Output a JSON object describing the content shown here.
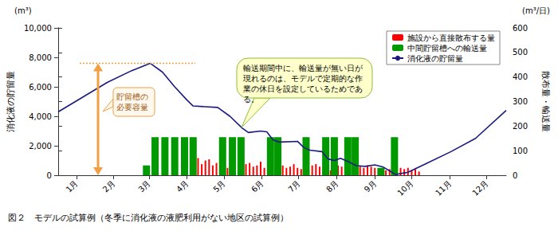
{
  "chart_data": {
    "type": "bar",
    "title": "図２　モデルの試算例（冬季に消化液の液肥利用がない地区の試算例）",
    "ylabel": "消化液の貯留量",
    "y_unit": "(m³)",
    "y2label": "散布量・輸送量",
    "y2_unit": "(m³/日)",
    "xlim": [
      0,
      365
    ],
    "xticks": [
      {
        "value": 15,
        "label": "1月"
      },
      {
        "value": 45,
        "label": "2月"
      },
      {
        "value": 74,
        "label": "3月"
      },
      {
        "value": 105,
        "label": "4月"
      },
      {
        "value": 135,
        "label": "5月"
      },
      {
        "value": 166,
        "label": "6月"
      },
      {
        "value": 196,
        "label": "7月"
      },
      {
        "value": 227,
        "label": "8月"
      },
      {
        "value": 258,
        "label": "9月"
      },
      {
        "value": 288,
        "label": "10月"
      },
      {
        "value": 319,
        "label": "11月"
      },
      {
        "value": 349,
        "label": "12月"
      }
    ],
    "ylim": [
      0,
      10000
    ],
    "yticks": [
      0,
      {
        "value": 2000,
        "label": "2,000"
      },
      {
        "value": 4000,
        "label": "4,000"
      },
      {
        "value": 6000,
        "label": "6,000"
      },
      {
        "value": 8000,
        "label": "8,000"
      },
      {
        "value": 10000,
        "label": "10,000"
      }
    ],
    "y2lim": [
      0,
      600
    ],
    "y2ticks": [
      0,
      100,
      200,
      300,
      400,
      500,
      600
    ],
    "grid": false,
    "legend": "upper right",
    "series": [
      {
        "name": "施設から直接散布する量",
        "type": "bar",
        "axis": "y2",
        "color": "#ff0000",
        "x": [
          111,
          114,
          117,
          120,
          123,
          126,
          129,
          132,
          135,
          138,
          141,
          144,
          147,
          150,
          153,
          156,
          159,
          162,
          165,
          168,
          171,
          174,
          177,
          180,
          183,
          186,
          189,
          192,
          195,
          198,
          201,
          204,
          207,
          210,
          213,
          216,
          219,
          222,
          225,
          228,
          231,
          234,
          237,
          240,
          243,
          246,
          249,
          252,
          255,
          258,
          261,
          264,
          267,
          270,
          273,
          276,
          279,
          282,
          285,
          288,
          291,
          294
        ],
        "values": [
          55,
          70,
          45,
          60,
          65,
          40,
          50,
          35,
          45,
          30,
          40,
          25,
          35,
          30,
          45,
          50,
          35,
          40,
          55,
          30,
          35,
          25,
          30,
          45,
          40,
          30,
          35,
          45,
          30,
          25,
          20,
          30,
          40,
          45,
          35,
          30,
          25,
          20,
          30,
          40,
          35,
          25,
          20,
          30,
          25,
          35,
          30,
          40,
          35,
          30,
          25,
          30,
          20,
          25,
          15,
          20,
          30,
          25,
          30,
          20,
          25,
          15
        ]
      },
      {
        "name": "中間貯留槽への輸送量",
        "type": "bar",
        "axis": "y2",
        "color": "#009900",
        "x": [
          72,
          79,
          87,
          95,
          103,
          110,
          134,
          142,
          149,
          173,
          179,
          202,
          218,
          225,
          236,
          242,
          263,
          274
        ],
        "values": [
          40,
          155,
          155,
          155,
          155,
          155,
          155,
          155,
          155,
          155,
          155,
          155,
          155,
          155,
          155,
          155,
          30,
          155
        ]
      },
      {
        "name": "消化液の貯留量",
        "type": "line",
        "axis": "y",
        "color": "#1a1a80",
        "x": [
          0,
          20,
          40,
          60,
          75,
          85,
          95,
          105,
          110,
          120,
          130,
          140,
          150,
          155,
          165,
          170,
          175,
          180,
          195,
          200,
          205,
          215,
          220,
          225,
          230,
          237,
          243,
          250,
          258,
          265,
          270,
          275,
          285,
          300,
          320,
          340,
          365
        ],
        "values": [
          4300,
          5300,
          6300,
          7100,
          7600,
          7000,
          6000,
          5100,
          4700,
          4650,
          4600,
          4000,
          3200,
          2900,
          3000,
          2950,
          2400,
          2250,
          2300,
          1900,
          1700,
          1600,
          1100,
          1000,
          1150,
          900,
          650,
          600,
          700,
          550,
          300,
          50,
          200,
          800,
          1600,
          2500,
          4400
        ]
      }
    ],
    "annotations": [
      {
        "text": "貯留槽の必要容量",
        "value": 7600
      },
      {
        "text": "輸送期間中に、輸送量が無い日が現れるのは、モデルで定期的な作業の休日を設定しているためである。"
      }
    ]
  }
}
